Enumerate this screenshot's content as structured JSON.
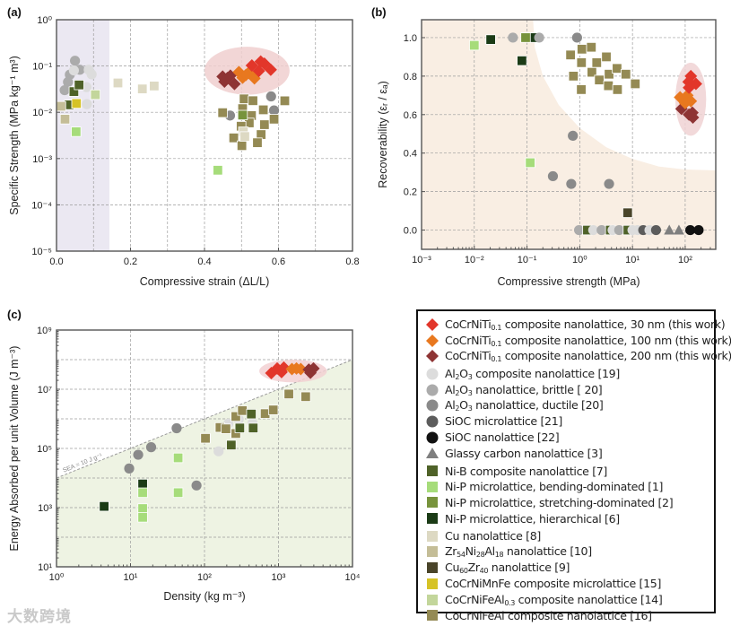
{
  "watermark": "大数跨境",
  "series": [
    {
      "label_parts": [
        {
          "t": "CoCrNiTi"
        },
        {
          "t": "0.1",
          "sub": true
        },
        {
          "t": " composite nanolattice, 30 nm (this work)"
        }
      ],
      "marker": "diamond",
      "color": "#e2362a"
    },
    {
      "label_parts": [
        {
          "t": "CoCrNiTi"
        },
        {
          "t": "0.1",
          "sub": true
        },
        {
          "t": " composite nanolattice, 100 nm (this work)"
        }
      ],
      "marker": "diamond",
      "color": "#e8781f"
    },
    {
      "label_parts": [
        {
          "t": "CoCrNiTi"
        },
        {
          "t": "0.1",
          "sub": true
        },
        {
          "t": " composite nanolattice, 200 nm (this work)"
        }
      ],
      "marker": "diamond",
      "color": "#8e3434"
    },
    {
      "label_parts": [
        {
          "t": "Al"
        },
        {
          "t": "2",
          "sub": true
        },
        {
          "t": "O"
        },
        {
          "t": "3",
          "sub": true
        },
        {
          "t": " composite nanolattice [19]"
        }
      ],
      "marker": "circle",
      "color": "#dcdcdc"
    },
    {
      "label_parts": [
        {
          "t": "Al"
        },
        {
          "t": "2",
          "sub": true
        },
        {
          "t": "O"
        },
        {
          "t": "3",
          "sub": true
        },
        {
          "t": " nanolattice, brittle [ 20]"
        }
      ],
      "marker": "circle",
      "color": "#ababab"
    },
    {
      "label_parts": [
        {
          "t": "Al"
        },
        {
          "t": "2",
          "sub": true
        },
        {
          "t": "O"
        },
        {
          "t": "3",
          "sub": true
        },
        {
          "t": " nanolattice, ductile [20]"
        }
      ],
      "marker": "circle",
      "color": "#8a8a8a"
    },
    {
      "label_parts": [
        {
          "t": "SiOC microlattice [21]"
        }
      ],
      "marker": "circle",
      "color": "#5c5c5c"
    },
    {
      "label_parts": [
        {
          "t": "SiOC nanolattice [22]"
        }
      ],
      "marker": "circle",
      "color": "#111111"
    },
    {
      "label_parts": [
        {
          "t": "Glassy carbon nanolattice [3]"
        }
      ],
      "marker": "triangle",
      "color": "#7f7f7f"
    },
    {
      "label_parts": [
        {
          "t": "Ni-B composite nanolattice [7]"
        }
      ],
      "marker": "square",
      "color": "#4f6228"
    },
    {
      "label_parts": [
        {
          "t": "Ni-P microlattice, bending-dominated [1]"
        }
      ],
      "marker": "square",
      "color": "#a6dc7a"
    },
    {
      "label_parts": [
        {
          "t": "Ni-P microlattice, stretching-dominated [2]"
        }
      ],
      "marker": "square",
      "color": "#77933c"
    },
    {
      "label_parts": [
        {
          "t": "Ni-P microlattice, hierarchical [6]"
        }
      ],
      "marker": "square",
      "color": "#1b3b16"
    },
    {
      "label_parts": [
        {
          "t": "Cu nanolattice [8]"
        }
      ],
      "marker": "square",
      "color": "#ddd9c3"
    },
    {
      "label_parts": [
        {
          "t": "Zr"
        },
        {
          "t": "54",
          "sub": true
        },
        {
          "t": "Ni"
        },
        {
          "t": "28",
          "sub": true
        },
        {
          "t": "Al"
        },
        {
          "t": "18",
          "sub": true
        },
        {
          "t": " nanolattice [10]"
        }
      ],
      "marker": "square",
      "color": "#c4bd97"
    },
    {
      "label_parts": [
        {
          "t": "Cu"
        },
        {
          "t": "60",
          "sub": true
        },
        {
          "t": "Zr"
        },
        {
          "t": "40",
          "sub": true
        },
        {
          "t": " nanolattice [9]"
        }
      ],
      "marker": "square",
      "color": "#494429"
    },
    {
      "label_parts": [
        {
          "t": "CoCrNiMnFe composite microlattice [15]"
        }
      ],
      "marker": "square",
      "color": "#d6c326"
    },
    {
      "label_parts": [
        {
          "t": "CoCrNiFeAl"
        },
        {
          "t": "0.3",
          "sub": true
        },
        {
          "t": " composite nanolattice [14]"
        }
      ],
      "marker": "square",
      "color": "#c3d69b"
    },
    {
      "label_parts": [
        {
          "t": "CoCrNiFeAl composite nanolattice [16]"
        }
      ],
      "marker": "square",
      "color": "#948a54"
    }
  ],
  "chart_data": [
    {
      "panel_label": "(a)",
      "type": "scatter",
      "xlabel": "Compressive strain (ΔL/L)",
      "ylabel": "Specific Strength (MPa kg⁻¹ m³)",
      "xscale": "linear",
      "yscale": "log",
      "xlim": [
        0,
        0.8
      ],
      "ylim": [
        1e-05,
        1
      ],
      "xticks": [
        0,
        0.2,
        0.4,
        0.6,
        0.8
      ],
      "xtick_labels": [
        "0.0",
        "0.2",
        "0.4",
        "0.6",
        "0.8"
      ],
      "yticks": [
        1e-05,
        0.0001,
        0.001,
        0.01,
        0.1,
        1
      ],
      "ytick_labels": [
        "10⁻⁵",
        "10⁻⁴",
        "10⁻³",
        "10⁻²",
        "10⁻¹",
        "10⁰"
      ],
      "xgrid": [
        0.1,
        0.2,
        0.3,
        0.4,
        0.5,
        0.6,
        0.7
      ],
      "ygrid": [
        0.0001,
        0.001,
        0.01,
        0.1
      ],
      "shaded_band_x": [
        0,
        0.143
      ],
      "shaded_color": "#ebe8f2",
      "highlight": {
        "x_range": [
          0.4,
          0.63
        ],
        "y_range": [
          0.024,
          0.26
        ],
        "color": "#f0cfcf"
      },
      "points": [
        [
          0.05,
          0.13,
          4
        ],
        [
          0.036,
          0.065,
          4
        ],
        [
          0.031,
          0.045,
          4
        ],
        [
          0.022,
          0.03,
          4
        ],
        [
          0.063,
          0.083,
          4
        ],
        [
          0.047,
          0.08,
          3
        ],
        [
          0.087,
          0.083,
          3
        ],
        [
          0.095,
          0.066,
          3
        ],
        [
          0.081,
          0.035,
          3
        ],
        [
          0.082,
          0.015,
          3
        ],
        [
          0.469,
          0.0085,
          5
        ],
        [
          0.58,
          0.022,
          5
        ],
        [
          0.588,
          0.011,
          5
        ],
        [
          0.047,
          0.028,
          9
        ],
        [
          0.061,
          0.039,
          9
        ],
        [
          0.034,
          0.0145,
          9
        ],
        [
          0.054,
          0.0155,
          16
        ],
        [
          0.012,
          0.0135,
          14
        ],
        [
          0.023,
          0.0071,
          14
        ],
        [
          0.053,
          0.0038,
          10
        ],
        [
          0.436,
          0.00056,
          10
        ],
        [
          0.105,
          0.024,
          17
        ],
        [
          0.166,
          0.043,
          13
        ],
        [
          0.232,
          0.032,
          13
        ],
        [
          0.264,
          0.037,
          13
        ],
        [
          0.449,
          0.0098,
          18
        ],
        [
          0.507,
          0.0195,
          18
        ],
        [
          0.531,
          0.0178,
          18
        ],
        [
          0.503,
          0.012,
          18
        ],
        [
          0.527,
          0.0085,
          18
        ],
        [
          0.521,
          0.0059,
          18
        ],
        [
          0.499,
          0.005,
          18
        ],
        [
          0.559,
          0.0113,
          18
        ],
        [
          0.562,
          0.0054,
          18
        ],
        [
          0.588,
          0.0071,
          18
        ],
        [
          0.617,
          0.0177,
          18
        ],
        [
          0.479,
          0.0028,
          18
        ],
        [
          0.501,
          0.0019,
          18
        ],
        [
          0.553,
          0.0033,
          18
        ],
        [
          0.543,
          0.0022,
          18
        ],
        [
          0.503,
          0.0087,
          11
        ],
        [
          0.505,
          0.0038,
          13
        ],
        [
          0.509,
          0.003,
          13
        ],
        [
          0.449,
          0.059,
          2
        ],
        [
          0.462,
          0.055,
          2
        ],
        [
          0.454,
          0.046,
          2
        ],
        [
          0.481,
          0.041,
          2
        ],
        [
          0.47,
          0.062,
          2
        ],
        [
          0.493,
          0.074,
          1
        ],
        [
          0.519,
          0.071,
          1
        ],
        [
          0.503,
          0.056,
          1
        ],
        [
          0.535,
          0.054,
          1
        ],
        [
          0.512,
          0.064,
          1
        ],
        [
          0.528,
          0.103,
          0
        ],
        [
          0.552,
          0.125,
          0
        ],
        [
          0.562,
          0.112,
          0
        ],
        [
          0.547,
          0.078,
          0
        ],
        [
          0.579,
          0.083,
          0
        ]
      ]
    },
    {
      "panel_label": "(b)",
      "type": "scatter",
      "xlabel": "Compressive strength (MPa)",
      "ylabel": "Recoverability (εᵣ / εₐ)",
      "xscale": "log",
      "yscale": "linear",
      "xlim": [
        0.001,
        380
      ],
      "ylim": [
        -0.1,
        1.093
      ],
      "xticks": [
        0.001,
        0.01,
        0.1,
        1,
        10,
        100
      ],
      "xtick_labels": [
        "10⁻³",
        "10⁻²",
        "10⁻¹",
        "10⁰",
        "10¹",
        "10²"
      ],
      "yticks": [
        0,
        0.2,
        0.4,
        0.6,
        0.8,
        1.0
      ],
      "ytick_labels": [
        "0.0",
        "0.2",
        "0.4",
        "0.6",
        "0.8",
        "1.0"
      ],
      "xgrid": [
        0.01,
        0.1,
        1,
        10,
        100
      ],
      "ygrid": [
        0,
        0.2,
        0.4,
        0.6,
        0.8,
        1.0
      ],
      "background_color": "#f9eee3",
      "white_region_boundary": [
        [
          0.13,
          1.1
        ],
        [
          0.14,
          0.95
        ],
        [
          0.2,
          0.8
        ],
        [
          0.4,
          0.65
        ],
        [
          1,
          0.53
        ],
        [
          3.2,
          0.43
        ],
        [
          10,
          0.37
        ],
        [
          32,
          0.33
        ],
        [
          100,
          0.315
        ],
        [
          380,
          0.31
        ]
      ],
      "highlight": {
        "x_range": [
          65,
          250
        ],
        "y_range": [
          0.49,
          0.87
        ],
        "color": "#f0d2d4"
      },
      "points": [
        [
          0.0205,
          0.99,
          12
        ],
        [
          0.08,
          0.88,
          12
        ],
        [
          0.13,
          1.0,
          12
        ],
        [
          0.094,
          1.0,
          11
        ],
        [
          0.01,
          0.96,
          10
        ],
        [
          0.115,
          0.35,
          10
        ],
        [
          0.054,
          1.0,
          4
        ],
        [
          0.17,
          1.0,
          4
        ],
        [
          0.89,
          1.0,
          5
        ],
        [
          0.74,
          0.49,
          5
        ],
        [
          0.31,
          0.28,
          5
        ],
        [
          0.69,
          0.24,
          5
        ],
        [
          3.6,
          0.24,
          5
        ],
        [
          0.67,
          0.91,
          18
        ],
        [
          0.76,
          0.8,
          18
        ],
        [
          1.1,
          0.94,
          18
        ],
        [
          1.08,
          0.87,
          18
        ],
        [
          1.07,
          0.73,
          18
        ],
        [
          1.66,
          0.95,
          18
        ],
        [
          1.7,
          0.82,
          18
        ],
        [
          2.1,
          0.87,
          18
        ],
        [
          2.35,
          0.78,
          18
        ],
        [
          3.2,
          0.9,
          18
        ],
        [
          3.6,
          0.81,
          18
        ],
        [
          3.5,
          0.75,
          18
        ],
        [
          5.1,
          0.84,
          18
        ],
        [
          5.2,
          0.73,
          18
        ],
        [
          7.5,
          0.81,
          18
        ],
        [
          11.3,
          0.76,
          18
        ],
        [
          8.1,
          0.09,
          15
        ],
        [
          0.97,
          0,
          4
        ],
        [
          1.4,
          0,
          9
        ],
        [
          1.8,
          0,
          3
        ],
        [
          2.6,
          0,
          4
        ],
        [
          3.8,
          0,
          9
        ],
        [
          4.2,
          0,
          3
        ],
        [
          5.6,
          0,
          4
        ],
        [
          8.2,
          0,
          9
        ],
        [
          10,
          0,
          3
        ],
        [
          12.5,
          0,
          3
        ],
        [
          16,
          0,
          6
        ],
        [
          21,
          0,
          3
        ],
        [
          28,
          0,
          6
        ],
        [
          50,
          0,
          8
        ],
        [
          76,
          0,
          8
        ],
        [
          125,
          0,
          7
        ],
        [
          180,
          0,
          7
        ],
        [
          85,
          0.63,
          2
        ],
        [
          118,
          0.6,
          2
        ],
        [
          137,
          0.61,
          2
        ],
        [
          140,
          0.585,
          2
        ],
        [
          80,
          0.69,
          1
        ],
        [
          110,
          0.7,
          1
        ],
        [
          128,
          0.67,
          1
        ],
        [
          100,
          0.66,
          1
        ],
        [
          128,
          0.8,
          0
        ],
        [
          116,
          0.77,
          0
        ],
        [
          160,
          0.76,
          0
        ],
        [
          118,
          0.74,
          0
        ]
      ]
    },
    {
      "panel_label": "(c)",
      "type": "scatter",
      "xlabel": "Density (kg m⁻³)",
      "ylabel": "Energy Absorbed per unit Volume (J m⁻³)",
      "xscale": "log",
      "yscale": "log",
      "xlim": [
        1,
        10000
      ],
      "ylim": [
        10,
        1000000000
      ],
      "xticks": [
        1,
        10,
        100,
        1000,
        10000
      ],
      "xtick_labels": [
        "10⁰",
        "10¹",
        "10²",
        "10³",
        "10⁴"
      ],
      "yticks": [
        10,
        1000,
        100000,
        10000000,
        1000000000
      ],
      "ytick_labels": [
        "10¹",
        "10³",
        "10⁵",
        "10⁷",
        "10⁹"
      ],
      "xgrid": [
        10,
        100,
        1000
      ],
      "ygrid": [
        100,
        1000,
        10000,
        100000,
        1000000,
        10000000,
        100000000
      ],
      "sea_line": {
        "label": "SEA = 10 J g⁻¹",
        "sea_j_per_g": 10,
        "fill_color": "#eef3e3"
      },
      "highlight": {
        "x_range": [
          550,
          4500
        ],
        "y_range": [
          17000000,
          100000000
        ],
        "color": "#f2d0d2"
      },
      "points": [
        [
          4.4,
          1100,
          12
        ],
        [
          14.6,
          6300,
          12
        ],
        [
          14.6,
          3200,
          10
        ],
        [
          14.6,
          930,
          10
        ],
        [
          14.6,
          470,
          10
        ],
        [
          44,
          48000,
          10
        ],
        [
          44,
          3200,
          10
        ],
        [
          9.6,
          21000,
          5
        ],
        [
          12.7,
          61000,
          5
        ],
        [
          19,
          110000,
          5
        ],
        [
          42,
          480000,
          5
        ],
        [
          78,
          5600,
          5
        ],
        [
          155,
          80000,
          3
        ],
        [
          210,
          690000,
          3
        ],
        [
          290,
          950000,
          3
        ],
        [
          445,
          720000,
          3
        ],
        [
          103,
          220000,
          18
        ],
        [
          162,
          510000,
          18
        ],
        [
          195,
          460000,
          18
        ],
        [
          265,
          1200000,
          18
        ],
        [
          325,
          1900000,
          18
        ],
        [
          265,
          320000,
          18
        ],
        [
          660,
          1500000,
          18
        ],
        [
          850,
          2000000,
          18
        ],
        [
          1380,
          6900000,
          18
        ],
        [
          2330,
          5600000,
          18
        ],
        [
          230,
          130000,
          9
        ],
        [
          300,
          490000,
          9
        ],
        [
          430,
          1450000,
          9
        ],
        [
          455,
          490000,
          9
        ],
        [
          800,
          35000000,
          0
        ],
        [
          960,
          50000000,
          0
        ],
        [
          1100,
          38000000,
          0
        ],
        [
          1180,
          54000000,
          0
        ],
        [
          1520,
          48000000,
          1
        ],
        [
          1750,
          50000000,
          1
        ],
        [
          2000,
          48000000,
          1
        ],
        [
          2570,
          46000000,
          2
        ],
        [
          2970,
          50000000,
          2
        ],
        [
          2700,
          36000000,
          2
        ]
      ]
    }
  ]
}
